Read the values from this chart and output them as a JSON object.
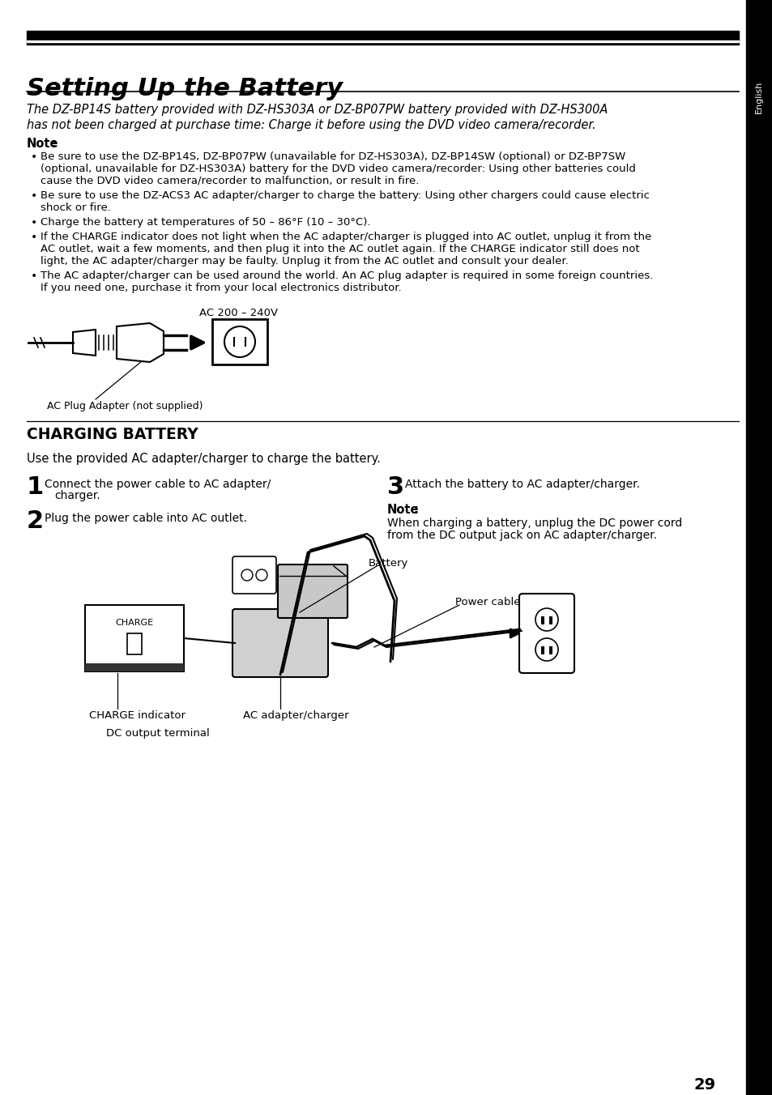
{
  "title": "Setting Up the Battery",
  "section2_title": "CHARGING BATTERY",
  "intro_italic": "The DZ-BP14S battery provided with DZ-HS303A or DZ-BP07PW battery provided with DZ-HS300A\nhas not been charged at purchase time: Charge it before using the DVD video camera/recorder.",
  "note_label": "Note",
  "note_colon": ":",
  "bullets": [
    "Be sure to use the DZ-BP14S, DZ-BP07PW (unavailable for DZ-HS303A), DZ-BP14SW (optional) or DZ-BP7SW\n(optional, unavailable for DZ-HS303A) battery for the DVD video camera/recorder: Using other batteries could\ncause the DVD video camera/recorder to malfunction, or result in fire.",
    "Be sure to use the DZ-ACS3 AC adapter/charger to charge the battery: Using other chargers could cause electric\nshock or fire.",
    "Charge the battery at temperatures of 50 – 86°F (10 – 30°C).",
    "If the CHARGE indicator does not light when the AC adapter/charger is plugged into AC outlet, unplug it from the\nAC outlet, wait a few moments, and then plug it into the AC outlet again. If the CHARGE indicator still does not\nlight, the AC adapter/charger may be faulty. Unplug it from the AC outlet and consult your dealer.",
    "The AC adapter/charger can be used around the world. An AC plug adapter is required in some foreign countries.\nIf you need one, purchase it from your local electronics distributor."
  ],
  "ac_label": "AC 200 – 240V",
  "plug_label": "AC Plug Adapter (not supplied)",
  "use_text": "Use the provided AC adapter/charger to charge the battery.",
  "step1_num": "1",
  "step1_line1": "Connect the power cable to AC adapter/",
  "step1_line2": "charger.",
  "step2_num": "2",
  "step2_text": "Plug the power cable into AC outlet.",
  "step3_num": "3",
  "step3_text": "Attach the battery to AC adapter/charger.",
  "note2_label": "Note",
  "note2_text_1": "When charging a battery, unplug the DC power cord",
  "note2_text_2": "from the DC output jack on AC adapter/charger.",
  "label_battery": "Battery",
  "label_power_cable": "Power cable",
  "label_charge_indicator": "CHARGE indicator",
  "label_ac_adapter": "AC adapter/charger",
  "label_dc_output": "DC output terminal",
  "label_charge": "CHARGE",
  "page_number": "29",
  "sidebar_text": "English"
}
